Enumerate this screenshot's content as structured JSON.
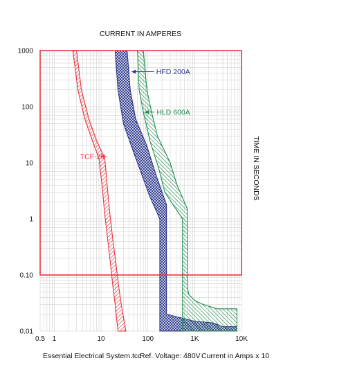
{
  "chart_data": {
    "type": "time-current curve",
    "title": "CURRENT IN AMPERES",
    "ylabel": "TIME IN SECONDS",
    "x_scale": "log",
    "y_scale": "log",
    "xlim": [
      0.5,
      10000
    ],
    "ylim": [
      0.01,
      1000
    ],
    "x_ticks": [
      {
        "value": 0.5,
        "label": "0.5"
      },
      {
        "value": 1,
        "label": "1"
      },
      {
        "value": 10,
        "label": "10"
      },
      {
        "value": 100,
        "label": "100"
      },
      {
        "value": 1000,
        "label": "1K"
      },
      {
        "value": 10000,
        "label": "10K"
      }
    ],
    "y_ticks": [
      {
        "value": 1000,
        "label": "1000"
      },
      {
        "value": 100,
        "label": "100"
      },
      {
        "value": 10,
        "label": "10"
      },
      {
        "value": 1,
        "label": "1"
      },
      {
        "value": 0.1,
        "label": "0.10"
      },
      {
        "value": 0.01,
        "label": "0.01"
      }
    ],
    "grid": true,
    "boundary": {
      "color": "#e8333a",
      "x": [
        0.5,
        10000
      ],
      "y": [
        0.1,
        1000
      ]
    },
    "series": [
      {
        "name": "TCF-20",
        "color": "#e8333a",
        "fill": "hatch",
        "label_at": [
          6.5,
          13
        ],
        "arrow_to": [
          9.8,
          13
        ],
        "band_left": [
          [
            2.5,
            1000
          ],
          [
            3.2,
            200
          ],
          [
            4.5,
            60
          ],
          [
            6.5,
            25
          ],
          [
            9,
            12
          ],
          [
            10.5,
            4
          ],
          [
            12,
            1.2
          ],
          [
            14,
            0.4
          ],
          [
            16,
            0.15
          ],
          [
            18,
            0.06
          ],
          [
            20,
            0.03
          ],
          [
            23,
            0.01
          ]
        ],
        "band_right": [
          [
            3.0,
            1000
          ],
          [
            3.8,
            200
          ],
          [
            5.5,
            60
          ],
          [
            8,
            25
          ],
          [
            12,
            12
          ],
          [
            13.5,
            4
          ],
          [
            15.5,
            1.2
          ],
          [
            18,
            0.4
          ],
          [
            21,
            0.15
          ],
          [
            24,
            0.06
          ],
          [
            27,
            0.03
          ],
          [
            34,
            0.01
          ]
        ]
      },
      {
        "name": "HFD 200A",
        "color": "#2e3a8c",
        "fill": "crosshatch",
        "label_at": [
          800,
          420
        ],
        "arrow_to": [
          45,
          420
        ],
        "band_left": [
          [
            20,
            1000
          ],
          [
            23,
            200
          ],
          [
            30,
            50
          ],
          [
            50,
            15
          ],
          [
            75,
            6
          ],
          [
            110,
            2.5
          ],
          [
            180,
            1
          ],
          [
            180,
            0.1
          ],
          [
            180,
            0.01
          ]
        ],
        "band_right": [
          [
            36,
            1000
          ],
          [
            42,
            200
          ],
          [
            55,
            60
          ],
          [
            95,
            20
          ],
          [
            150,
            6
          ],
          [
            250,
            1.8
          ],
          [
            250,
            0.02
          ],
          [
            1000,
            0.015
          ],
          [
            2500,
            0.014
          ],
          [
            4000,
            0.012
          ],
          [
            8000,
            0.012
          ],
          [
            8000,
            0.01
          ]
        ]
      },
      {
        "name": "HLD 600A",
        "color": "#1e8c4e",
        "fill": "hatch",
        "label_at": [
          800,
          80
        ],
        "arrow_to": [
          85,
          80
        ],
        "band_left": [
          [
            60,
            1000
          ],
          [
            65,
            200
          ],
          [
            80,
            80
          ],
          [
            110,
            25
          ],
          [
            170,
            8
          ],
          [
            230,
            3
          ],
          [
            360,
            1.7
          ],
          [
            550,
            1
          ],
          [
            550,
            0.1
          ],
          [
            550,
            0.01
          ]
        ],
        "band_right": [
          [
            80,
            1000
          ],
          [
            95,
            200
          ],
          [
            120,
            80
          ],
          [
            160,
            30
          ],
          [
            300,
            10
          ],
          [
            420,
            4
          ],
          [
            700,
            1.5
          ],
          [
            700,
            0.06
          ],
          [
            750,
            0.045
          ],
          [
            1000,
            0.035
          ],
          [
            1500,
            0.03
          ],
          [
            3000,
            0.025
          ],
          [
            8000,
            0.025
          ],
          [
            8000,
            0.01
          ]
        ]
      }
    ]
  },
  "footer": {
    "file": "Essential Electrical System.tcc",
    "voltage": "Ref. Voltage: 480V",
    "multiplier": "Current in Amps x 10"
  },
  "colors": {
    "grid": "#c8c8c8",
    "frame": "#e8333a",
    "red": "#e8333a",
    "blue": "#2e3a8c",
    "green": "#1e8c4e"
  }
}
